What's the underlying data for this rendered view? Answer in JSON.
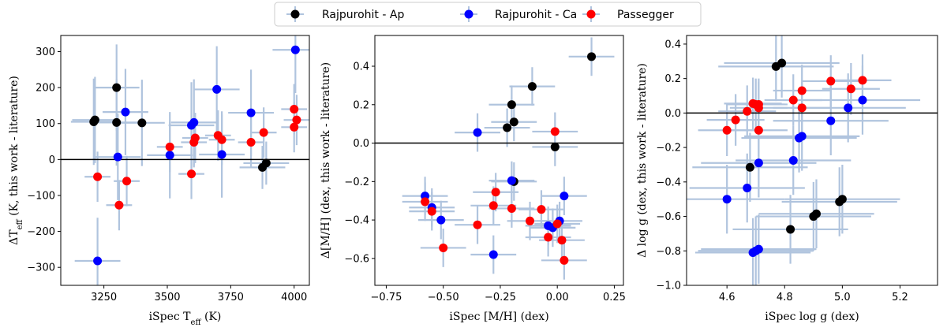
{
  "legend": {
    "entries": [
      {
        "name": "Rajpurohit - Ap",
        "color": "#000000"
      },
      {
        "name": "Rajpurohit - Ca",
        "color": "#0000ff"
      },
      {
        "name": "Passegger",
        "color": "#ff0000"
      }
    ],
    "errorbar_color": "#b0c4de",
    "placement": "top-center"
  },
  "chart_data": [
    {
      "type": "scatter",
      "xlabel": "iSpec T_eff (K)",
      "ylabel": "ΔT_eff (K, this work - literature)",
      "xlim": [
        3080,
        4060
      ],
      "ylim": [
        -350,
        345
      ],
      "xticks": [
        3250,
        3500,
        3750,
        4000
      ],
      "xtick_labels": [
        "3250",
        "3500",
        "3750",
        "4000"
      ],
      "yticks": [
        -300,
        -200,
        -100,
        0,
        100,
        200,
        300
      ],
      "ytick_labels": [
        "−300",
        "−200",
        "−100",
        "0",
        "100",
        "200",
        "300"
      ],
      "zero_line": 0,
      "series": [
        {
          "name": "Rajpurohit - Ap",
          "points": [
            {
              "x": 3210,
              "y": 105,
              "xerr": 90,
              "yerr": 120
            },
            {
              "x": 3215,
              "y": 110,
              "xerr": 90,
              "yerr": 120
            },
            {
              "x": 3300,
              "y": 200,
              "xerr": 90,
              "yerr": 120
            },
            {
              "x": 3300,
              "y": 103,
              "xerr": 90,
              "yerr": 120
            },
            {
              "x": 3400,
              "y": 102,
              "xerr": 90,
              "yerr": 120
            },
            {
              "x": 3875,
              "y": -22,
              "xerr": 90,
              "yerr": 60
            },
            {
              "x": 3890,
              "y": -10,
              "xerr": 90,
              "yerr": 60
            }
          ]
        },
        {
          "name": "Rajpurohit - Ca",
          "points": [
            {
              "x": 3225,
              "y": -282,
              "xerr": 90,
              "yerr": 120
            },
            {
              "x": 3305,
              "y": 7,
              "xerr": 90,
              "yerr": 120
            },
            {
              "x": 3335,
              "y": 132,
              "xerr": 90,
              "yerr": 120
            },
            {
              "x": 3510,
              "y": 12,
              "xerr": 90,
              "yerr": 120
            },
            {
              "x": 3595,
              "y": 95,
              "xerr": 90,
              "yerr": 120
            },
            {
              "x": 3605,
              "y": 103,
              "xerr": 90,
              "yerr": 120
            },
            {
              "x": 3695,
              "y": 195,
              "xerr": 90,
              "yerr": 120
            },
            {
              "x": 3715,
              "y": 14,
              "xerr": 90,
              "yerr": 120
            },
            {
              "x": 3830,
              "y": 130,
              "xerr": 90,
              "yerr": 120
            },
            {
              "x": 4005,
              "y": 305,
              "xerr": 90,
              "yerr": 120
            }
          ]
        },
        {
          "name": "Passegger",
          "points": [
            {
              "x": 3225,
              "y": -48,
              "xerr": 51,
              "yerr": 70
            },
            {
              "x": 3310,
              "y": -127,
              "xerr": 51,
              "yerr": 70
            },
            {
              "x": 3340,
              "y": -60,
              "xerr": 51,
              "yerr": 70
            },
            {
              "x": 3510,
              "y": 35,
              "xerr": 51,
              "yerr": 70
            },
            {
              "x": 3595,
              "y": -40,
              "xerr": 51,
              "yerr": 70
            },
            {
              "x": 3605,
              "y": 48,
              "xerr": 51,
              "yerr": 70
            },
            {
              "x": 3610,
              "y": 60,
              "xerr": 51,
              "yerr": 70
            },
            {
              "x": 3700,
              "y": 67,
              "xerr": 51,
              "yerr": 70
            },
            {
              "x": 3715,
              "y": 55,
              "xerr": 51,
              "yerr": 70
            },
            {
              "x": 3830,
              "y": 48,
              "xerr": 51,
              "yerr": 70
            },
            {
              "x": 3880,
              "y": 75,
              "xerr": 51,
              "yerr": 70
            },
            {
              "x": 4000,
              "y": 140,
              "xerr": 51,
              "yerr": 70
            },
            {
              "x": 4000,
              "y": 90,
              "xerr": 51,
              "yerr": 70
            },
            {
              "x": 4010,
              "y": 110,
              "xerr": 51,
              "yerr": 70
            }
          ]
        }
      ]
    },
    {
      "type": "scatter",
      "xlabel": "iSpec [M/H] (dex)",
      "ylabel": "Δ[M/H] (dex, this work - literature)",
      "xlim": [
        -0.8,
        0.29
      ],
      "ylim": [
        -0.74,
        0.56
      ],
      "xticks": [
        -0.75,
        -0.5,
        -0.25,
        0.0,
        0.25
      ],
      "xtick_labels": [
        "−0.75",
        "−0.50",
        "−0.25",
        "0.00",
        "0.25"
      ],
      "yticks": [
        -0.6,
        -0.4,
        -0.2,
        0.0,
        0.2,
        0.4
      ],
      "ytick_labels": [
        "−0.6",
        "−0.4",
        "−0.2",
        "0.0",
        "0.2",
        "0.4"
      ],
      "zero_line": 0,
      "series": [
        {
          "name": "Rajpurohit - Ap",
          "points": [
            {
              "x": 0.15,
              "y": 0.45,
              "xerr": 0.1,
              "yerr": 0.1
            },
            {
              "x": -0.11,
              "y": 0.295,
              "xerr": 0.1,
              "yerr": 0.1
            },
            {
              "x": -0.2,
              "y": 0.2,
              "xerr": 0.1,
              "yerr": 0.1
            },
            {
              "x": -0.19,
              "y": 0.11,
              "xerr": 0.1,
              "yerr": 0.1
            },
            {
              "x": -0.22,
              "y": 0.08,
              "xerr": 0.1,
              "yerr": 0.1
            },
            {
              "x": -0.01,
              "y": -0.02,
              "xerr": 0.1,
              "yerr": 0.1
            },
            {
              "x": -0.19,
              "y": -0.2,
              "xerr": 0.1,
              "yerr": 0.1
            }
          ]
        },
        {
          "name": "Rajpurohit - Ca",
          "points": [
            {
              "x": -0.35,
              "y": 0.055,
              "xerr": 0.1,
              "yerr": 0.1
            },
            {
              "x": -0.2,
              "y": -0.195,
              "xerr": 0.1,
              "yerr": 0.1
            },
            {
              "x": -0.58,
              "y": -0.275,
              "xerr": 0.1,
              "yerr": 0.1
            },
            {
              "x": -0.55,
              "y": -0.335,
              "xerr": 0.1,
              "yerr": 0.1
            },
            {
              "x": -0.51,
              "y": -0.4,
              "xerr": 0.1,
              "yerr": 0.1
            },
            {
              "x": -0.28,
              "y": -0.58,
              "xerr": 0.1,
              "yerr": 0.1
            },
            {
              "x": 0.03,
              "y": -0.275,
              "xerr": 0.1,
              "yerr": 0.1
            },
            {
              "x": -0.04,
              "y": -0.43,
              "xerr": 0.1,
              "yerr": 0.1
            },
            {
              "x": -0.02,
              "y": -0.44,
              "xerr": 0.1,
              "yerr": 0.1
            },
            {
              "x": 0.01,
              "y": -0.405,
              "xerr": 0.1,
              "yerr": 0.1
            }
          ]
        },
        {
          "name": "Passegger",
          "points": [
            {
              "x": -0.01,
              "y": 0.06,
              "xerr": 0.1,
              "yerr": 0.1
            },
            {
              "x": -0.58,
              "y": -0.305,
              "xerr": 0.1,
              "yerr": 0.1
            },
            {
              "x": -0.55,
              "y": -0.355,
              "xerr": 0.1,
              "yerr": 0.1
            },
            {
              "x": -0.5,
              "y": -0.545,
              "xerr": 0.1,
              "yerr": 0.1
            },
            {
              "x": -0.35,
              "y": -0.425,
              "xerr": 0.1,
              "yerr": 0.1
            },
            {
              "x": -0.27,
              "y": -0.255,
              "xerr": 0.1,
              "yerr": 0.1
            },
            {
              "x": -0.28,
              "y": -0.325,
              "xerr": 0.1,
              "yerr": 0.1
            },
            {
              "x": -0.2,
              "y": -0.34,
              "xerr": 0.1,
              "yerr": 0.1
            },
            {
              "x": -0.12,
              "y": -0.405,
              "xerr": 0.1,
              "yerr": 0.1
            },
            {
              "x": -0.07,
              "y": -0.345,
              "xerr": 0.1,
              "yerr": 0.1
            },
            {
              "x": -0.04,
              "y": -0.49,
              "xerr": 0.1,
              "yerr": 0.1
            },
            {
              "x": 0.0,
              "y": -0.42,
              "xerr": 0.1,
              "yerr": 0.1
            },
            {
              "x": 0.02,
              "y": -0.505,
              "xerr": 0.1,
              "yerr": 0.1
            },
            {
              "x": 0.03,
              "y": -0.61,
              "xerr": 0.1,
              "yerr": 0.1
            }
          ]
        }
      ]
    },
    {
      "type": "scatter",
      "xlabel": "iSpec log g (dex)",
      "ylabel": "Δ log g (dex, this work - literature)",
      "xlim": [
        4.46,
        5.33
      ],
      "ylim": [
        -1.0,
        0.45
      ],
      "xticks": [
        4.6,
        4.8,
        5.0,
        5.2
      ],
      "xtick_labels": [
        "4.6",
        "4.8",
        "5.0",
        "5.2"
      ],
      "yticks": [
        -1.0,
        -0.8,
        -0.6,
        -0.4,
        -0.2,
        0.0,
        0.2,
        0.4
      ],
      "ytick_labels": [
        "−1.0",
        "−0.8",
        "−0.6",
        "−0.4",
        "−0.2",
        "0.0",
        "0.2",
        "0.4"
      ],
      "zero_line": 0,
      "series": [
        {
          "name": "Rajpurohit - Ap",
          "points": [
            {
              "x": 4.77,
              "y": 0.27,
              "xerr": 0.2,
              "yerr": 0.2
            },
            {
              "x": 4.79,
              "y": 0.29,
              "xerr": 0.2,
              "yerr": 0.2
            },
            {
              "x": 4.68,
              "y": -0.315,
              "xerr": 0.2,
              "yerr": 0.2
            },
            {
              "x": 4.82,
              "y": -0.675,
              "xerr": 0.2,
              "yerr": 0.2
            },
            {
              "x": 4.9,
              "y": -0.6,
              "xerr": 0.2,
              "yerr": 0.2
            },
            {
              "x": 4.91,
              "y": -0.585,
              "xerr": 0.2,
              "yerr": 0.2
            },
            {
              "x": 4.99,
              "y": -0.515,
              "xerr": 0.2,
              "yerr": 0.2
            },
            {
              "x": 5.0,
              "y": -0.5,
              "xerr": 0.2,
              "yerr": 0.2
            }
          ]
        },
        {
          "name": "Rajpurohit - Ca",
          "points": [
            {
              "x": 4.6,
              "y": -0.5,
              "xerr": 0.2,
              "yerr": 0.2
            },
            {
              "x": 4.67,
              "y": -0.435,
              "xerr": 0.2,
              "yerr": 0.2
            },
            {
              "x": 4.71,
              "y": -0.29,
              "xerr": 0.2,
              "yerr": 0.2
            },
            {
              "x": 4.83,
              "y": -0.275,
              "xerr": 0.2,
              "yerr": 0.2
            },
            {
              "x": 4.85,
              "y": -0.145,
              "xerr": 0.2,
              "yerr": 0.2
            },
            {
              "x": 4.86,
              "y": -0.135,
              "xerr": 0.2,
              "yerr": 0.2
            },
            {
              "x": 4.96,
              "y": -0.045,
              "xerr": 0.2,
              "yerr": 0.2
            },
            {
              "x": 5.02,
              "y": 0.03,
              "xerr": 0.2,
              "yerr": 0.2
            },
            {
              "x": 5.07,
              "y": 0.075,
              "xerr": 0.2,
              "yerr": 0.2
            },
            {
              "x": 4.69,
              "y": -0.81,
              "xerr": 0.2,
              "yerr": 0.2
            },
            {
              "x": 4.7,
              "y": -0.8,
              "xerr": 0.2,
              "yerr": 0.2
            },
            {
              "x": 4.71,
              "y": -0.79,
              "xerr": 0.2,
              "yerr": 0.2
            }
          ]
        },
        {
          "name": "Passegger",
          "points": [
            {
              "x": 4.6,
              "y": -0.1,
              "xerr": 0.1,
              "yerr": 0.15
            },
            {
              "x": 4.63,
              "y": -0.04,
              "xerr": 0.1,
              "yerr": 0.15
            },
            {
              "x": 4.67,
              "y": 0.01,
              "xerr": 0.1,
              "yerr": 0.15
            },
            {
              "x": 4.69,
              "y": 0.055,
              "xerr": 0.1,
              "yerr": 0.15
            },
            {
              "x": 4.7,
              "y": 0.05,
              "xerr": 0.1,
              "yerr": 0.15
            },
            {
              "x": 4.71,
              "y": 0.03,
              "xerr": 0.1,
              "yerr": 0.15
            },
            {
              "x": 4.71,
              "y": 0.05,
              "xerr": 0.1,
              "yerr": 0.15
            },
            {
              "x": 4.71,
              "y": -0.1,
              "xerr": 0.1,
              "yerr": 0.15
            },
            {
              "x": 4.83,
              "y": 0.075,
              "xerr": 0.1,
              "yerr": 0.15
            },
            {
              "x": 4.86,
              "y": 0.13,
              "xerr": 0.1,
              "yerr": 0.15
            },
            {
              "x": 4.86,
              "y": 0.03,
              "xerr": 0.1,
              "yerr": 0.15
            },
            {
              "x": 4.96,
              "y": 0.185,
              "xerr": 0.1,
              "yerr": 0.15
            },
            {
              "x": 5.03,
              "y": 0.14,
              "xerr": 0.1,
              "yerr": 0.15
            },
            {
              "x": 5.07,
              "y": 0.19,
              "xerr": 0.1,
              "yerr": 0.15
            }
          ]
        }
      ]
    }
  ]
}
